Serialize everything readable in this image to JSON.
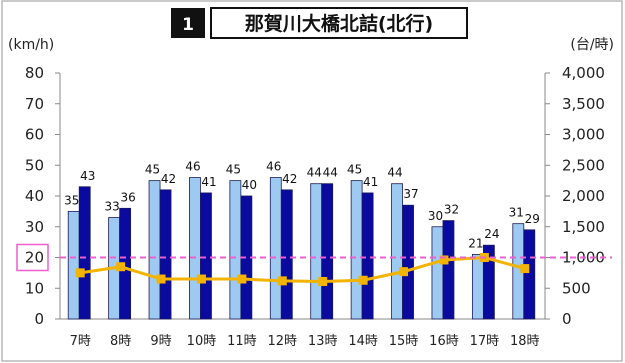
{
  "chart_data": {
    "type": "bar",
    "title_number": "1",
    "title": "那賀川大橋北詰(北行)",
    "left_unit": "(km/h)",
    "right_unit": "(台/時)",
    "categories": [
      "7時",
      "8時",
      "9時",
      "10時",
      "11時",
      "12時",
      "13時",
      "14時",
      "15時",
      "16時",
      "17時",
      "18時"
    ],
    "series": [
      {
        "values": [
          35,
          33,
          45,
          46,
          45,
          46,
          44,
          45,
          44,
          30,
          21,
          31
        ],
        "axis": "left",
        "color": "#9ec9f0"
      },
      {
        "values": [
          43,
          36,
          42,
          41,
          40,
          42,
          44,
          41,
          37,
          32,
          24,
          29
        ],
        "axis": "left",
        "color": "#0a0a9e"
      },
      {
        "values": [
          750,
          850,
          650,
          650,
          650,
          620,
          610,
          630,
          770,
          960,
          1000,
          820
        ],
        "axis": "right",
        "type": "line",
        "color": "#f2b400"
      }
    ],
    "ylim_left": [
      0,
      80
    ],
    "yticks_left": [
      "0",
      "10",
      "20",
      "30",
      "40",
      "50",
      "60",
      "70",
      "80"
    ],
    "ylim_right": [
      0,
      4000
    ],
    "yticks_right": [
      "0",
      "500",
      "1,000",
      "1,500",
      "2,000",
      "2,500",
      "3,000",
      "3,500",
      "4,000"
    ],
    "reference_line": {
      "value": 20,
      "label": "20",
      "color": "#ee5fd0"
    },
    "grid": false
  }
}
